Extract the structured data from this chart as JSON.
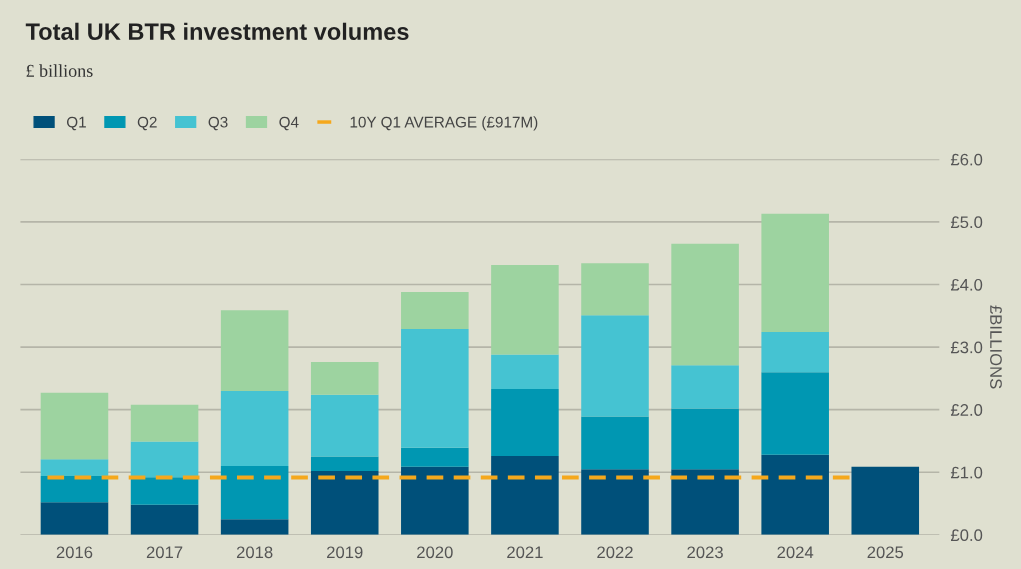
{
  "chart_data": {
    "type": "bar",
    "title": "Total UK BTR investment volumes",
    "subtitle": "£ billions",
    "ylabel": "£BILLIONS",
    "categories": [
      "2016",
      "2017",
      "2018",
      "2019",
      "2020",
      "2021",
      "2022",
      "2023",
      "2024",
      "2025"
    ],
    "stacked": true,
    "series": [
      {
        "name": "Q1",
        "color": "#00507a",
        "values": [
          0.52,
          0.48,
          0.25,
          1.02,
          1.09,
          1.26,
          1.05,
          1.05,
          1.28,
          1.09
        ]
      },
      {
        "name": "Q2",
        "color": "#0097b2",
        "values": [
          0.42,
          0.44,
          0.85,
          0.23,
          0.3,
          1.07,
          0.84,
          0.97,
          1.32,
          null
        ]
      },
      {
        "name": "Q3",
        "color": "#45c3d2",
        "values": [
          0.27,
          0.57,
          1.2,
          0.99,
          1.9,
          0.55,
          1.62,
          0.69,
          0.64,
          null
        ]
      },
      {
        "name": "Q4",
        "color": "#9dd3a0",
        "values": [
          1.06,
          0.59,
          1.29,
          0.52,
          0.59,
          1.43,
          0.83,
          1.94,
          1.89,
          null
        ]
      }
    ],
    "ref_lines": [
      {
        "axis": "y",
        "value": 0.917,
        "label": "10Y Q1 AVERAGE (£917M)",
        "color": "#f5a81c",
        "line_style": "dashed"
      }
    ],
    "ylim": [
      0,
      6
    ],
    "yticks": [
      {
        "value": 0,
        "label": "£0.0"
      },
      {
        "value": 1,
        "label": "£1.0"
      },
      {
        "value": 2,
        "label": "£2.0"
      },
      {
        "value": 3,
        "label": "£3.0"
      },
      {
        "value": 4,
        "label": "£4.0"
      },
      {
        "value": 5,
        "label": "£5.0"
      },
      {
        "value": 6,
        "label": "£6.0"
      }
    ],
    "grid": "y",
    "legend": "top left"
  }
}
